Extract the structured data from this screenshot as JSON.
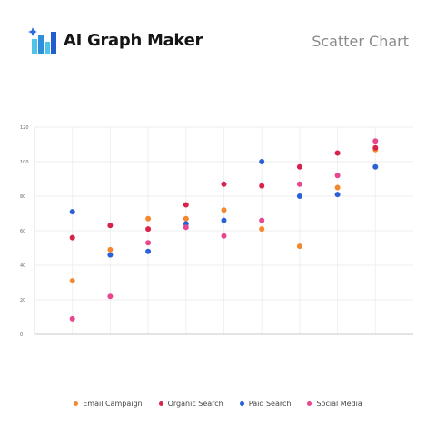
{
  "header": {
    "brand": "AI Graph Maker",
    "chart_type_label": "Scatter Chart"
  },
  "colors": {
    "brand_dark": "#1f5fcf",
    "brand_light": "#4fc3e8",
    "spark": "#2b6be0"
  },
  "icons": {
    "logo": "bar-chart-sparkle-icon"
  },
  "chart_data": {
    "type": "scatter",
    "title": "",
    "xlabel": "",
    "ylabel": "",
    "ylim": [
      0,
      120
    ],
    "yticks": [
      0,
      20,
      40,
      60,
      80,
      100,
      120
    ],
    "x": [
      1,
      2,
      3,
      4,
      5,
      6,
      7,
      8,
      9
    ],
    "grid": true,
    "legend_position": "bottom",
    "series": [
      {
        "name": "Email Campaign",
        "color": "#f5882e",
        "values": [
          31,
          49,
          67,
          67,
          72,
          61,
          51,
          85,
          107
        ]
      },
      {
        "name": "Organic Search",
        "color": "#d9224a",
        "values": [
          56,
          63,
          61,
          75,
          87,
          86,
          97,
          105,
          108
        ]
      },
      {
        "name": "Paid Search",
        "color": "#2a62d6",
        "values": [
          71,
          46,
          48,
          64,
          66,
          100,
          80,
          81,
          97
        ]
      },
      {
        "name": "Social Media",
        "color": "#e8468f",
        "values": [
          9,
          22,
          53,
          62,
          57,
          66,
          87,
          92,
          112
        ]
      }
    ]
  }
}
